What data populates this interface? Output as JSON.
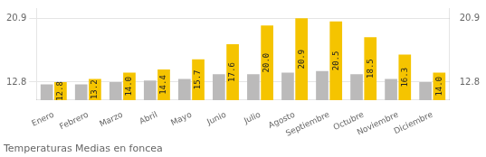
{
  "chart_data": {
    "type": "bar",
    "title": "Temperaturas Medias en foncea",
    "categories": [
      "Enero",
      "Febrero",
      "Marzo",
      "Abril",
      "Mayo",
      "Junio",
      "Julio",
      "Agosto",
      "Septiembre",
      "Octubre",
      "Noviembre",
      "Diciembre"
    ],
    "series": [
      {
        "color": "#BBBABA",
        "values": [
          12.5,
          12.5,
          12.8,
          13.0,
          13.2,
          13.8,
          13.8,
          14.0,
          14.2,
          13.8,
          13.2,
          12.8
        ]
      },
      {
        "color": "#F5C400",
        "values": [
          12.8,
          13.2,
          14.0,
          14.4,
          15.7,
          17.6,
          20.0,
          20.9,
          20.5,
          18.5,
          16.3,
          14.0
        ],
        "value_labels": [
          "12.8",
          "13.2",
          "14.0",
          "14.4",
          "15.7",
          "17.6",
          "20.0",
          "20.9",
          "20.5",
          "18.5",
          "16.3",
          "14.0"
        ],
        "data_labels": true
      }
    ],
    "ylim": [
      10.5,
      22.2
    ],
    "yticks": [
      12.8,
      20.9
    ],
    "y2lim": [
      10.5,
      22.2
    ],
    "y2ticks": [
      12.8,
      20.9
    ],
    "grid": true
  }
}
